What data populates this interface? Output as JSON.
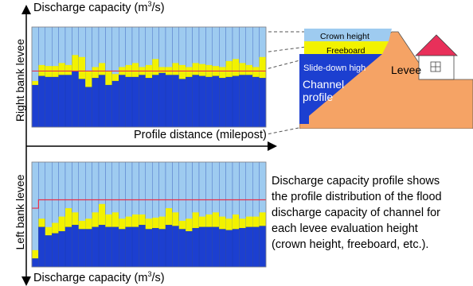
{
  "top_axis": {
    "label": "Discharge capacity (m",
    "sup": "3",
    "close": "/s)"
  },
  "bottom_axis": {
    "label": "Discharge capacity (m",
    "sup": "3",
    "close": "/s)"
  },
  "right_bank_label": "Right bank levee",
  "left_bank_label": "Left bank levee",
  "profile_distance_label": "Profile distance (milepost)",
  "levee_diagram": {
    "crown_height": "Crown height",
    "freeboard": "Freeboard",
    "slide_down_high": "Slide-down high",
    "levee": "Levee",
    "channel_profile_line1": "Channel",
    "channel_profile_line2": "profile"
  },
  "description": {
    "line1": "Discharge capacity profile shows",
    "line2": "the profile distribution of the flood",
    "line3": "discharge capacity of channel for",
    "line4": "each levee evaluation height",
    "line5": "(crown height, freeboard, etc.)."
  },
  "colors": {
    "crown": "#9ecbf0",
    "freeboard": "#f2f200",
    "slide": "#1c3fd0",
    "levee": "#f5a365",
    "red_line": "#e8304a"
  },
  "chart_data": [
    {
      "type": "bar",
      "name": "right-bank",
      "bars": 35,
      "ylim": [
        0,
        1000
      ],
      "top_crown": 1000,
      "freeboard": [
        460,
        620,
        610,
        610,
        640,
        620,
        720,
        700,
        560,
        600,
        640,
        560,
        530,
        600,
        620,
        640,
        600,
        620,
        680,
        600,
        600,
        640,
        620,
        600,
        640,
        630,
        620,
        610,
        600,
        660,
        680,
        640,
        620,
        600,
        700
      ],
      "slide": [
        420,
        510,
        500,
        500,
        520,
        520,
        560,
        480,
        400,
        490,
        520,
        420,
        460,
        520,
        500,
        500,
        520,
        490,
        520,
        540,
        520,
        520,
        480,
        500,
        520,
        510,
        500,
        510,
        490,
        500,
        510,
        520,
        520,
        500,
        490
      ]
    },
    {
      "type": "bar",
      "name": "left-bank",
      "bars": 35,
      "ylim": [
        0,
        1000
      ],
      "top_crown": 1000,
      "freeboard": [
        160,
        460,
        380,
        420,
        480,
        560,
        520,
        440,
        460,
        520,
        600,
        500,
        520,
        460,
        480,
        500,
        500,
        460,
        470,
        480,
        560,
        520,
        440,
        460,
        520,
        480,
        500,
        520,
        480,
        460,
        500,
        460,
        480,
        480,
        520
      ],
      "slide": [
        80,
        380,
        300,
        320,
        340,
        380,
        400,
        360,
        360,
        380,
        400,
        380,
        380,
        360,
        380,
        380,
        400,
        360,
        370,
        360,
        400,
        390,
        360,
        340,
        370,
        380,
        380,
        380,
        360,
        350,
        360,
        370,
        380,
        380,
        390
      ]
    }
  ]
}
